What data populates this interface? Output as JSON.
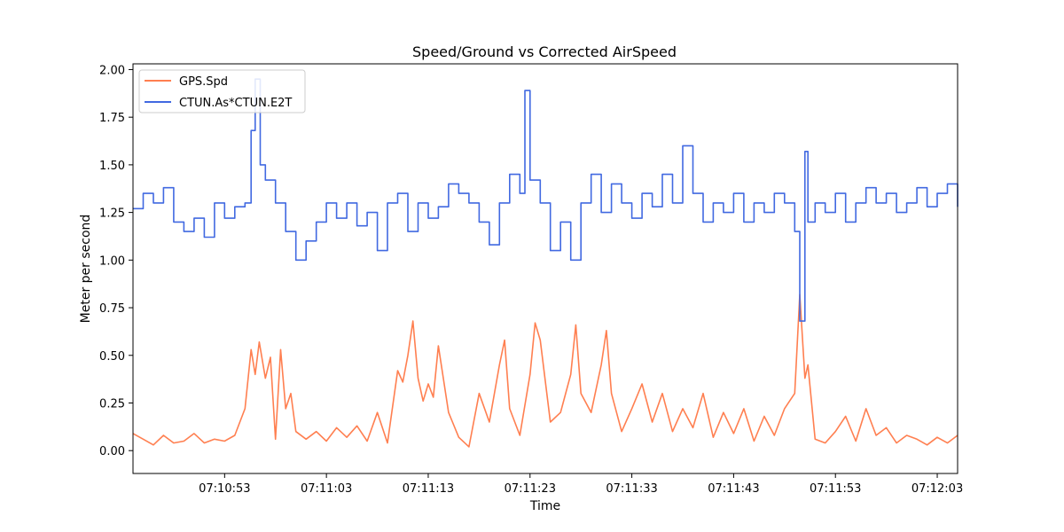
{
  "chart_data": {
    "type": "line",
    "title": "Speed/Ground vs Corrected AirSpeed",
    "xlabel": "Time",
    "ylabel": "Meter per second",
    "x_unit": "time of day (HH:MM:SS)",
    "xlim": [
      "07:10:44",
      "07:12:05"
    ],
    "ylim": [
      -0.12,
      2.03
    ],
    "x_ticks": [
      "07:10:53",
      "07:11:03",
      "07:11:13",
      "07:11:23",
      "07:11:33",
      "07:11:43",
      "07:11:53",
      "07:12:03"
    ],
    "y_ticks": [
      "0.00",
      "0.25",
      "0.50",
      "0.75",
      "1.00",
      "1.25",
      "1.50",
      "1.75",
      "2.00"
    ],
    "grid": false,
    "legend_position": "top-left",
    "series": [
      {
        "name": "GPS.Spd",
        "color": "#FF7F50",
        "step": false,
        "points": [
          [
            "07:10:44",
            0.09
          ],
          [
            "07:10:45",
            0.06
          ],
          [
            "07:10:46",
            0.03
          ],
          [
            "07:10:47",
            0.08
          ],
          [
            "07:10:48",
            0.04
          ],
          [
            "07:10:49",
            0.05
          ],
          [
            "07:10:50",
            0.09
          ],
          [
            "07:10:51",
            0.04
          ],
          [
            "07:10:52",
            0.06
          ],
          [
            "07:10:53",
            0.05
          ],
          [
            "07:10:54",
            0.08
          ],
          [
            "07:10:55",
            0.22
          ],
          [
            "07:10:55.6",
            0.53
          ],
          [
            "07:10:56",
            0.4
          ],
          [
            "07:10:56.4",
            0.57
          ],
          [
            "07:10:57",
            0.38
          ],
          [
            "07:10:57.5",
            0.49
          ],
          [
            "07:10:58",
            0.06
          ],
          [
            "07:10:58.5",
            0.53
          ],
          [
            "07:10:59",
            0.22
          ],
          [
            "07:10:59.5",
            0.3
          ],
          [
            "07:11:00",
            0.1
          ],
          [
            "07:11:01",
            0.06
          ],
          [
            "07:11:02",
            0.1
          ],
          [
            "07:11:03",
            0.05
          ],
          [
            "07:11:04",
            0.12
          ],
          [
            "07:11:05",
            0.07
          ],
          [
            "07:11:06",
            0.13
          ],
          [
            "07:11:07",
            0.05
          ],
          [
            "07:11:08",
            0.2
          ],
          [
            "07:11:09",
            0.04
          ],
          [
            "07:11:10",
            0.42
          ],
          [
            "07:11:10.5",
            0.36
          ],
          [
            "07:11:11",
            0.5
          ],
          [
            "07:11:11.5",
            0.68
          ],
          [
            "07:11:12",
            0.38
          ],
          [
            "07:11:12.5",
            0.26
          ],
          [
            "07:11:13",
            0.35
          ],
          [
            "07:11:13.5",
            0.28
          ],
          [
            "07:11:14",
            0.55
          ],
          [
            "07:11:15",
            0.2
          ],
          [
            "07:11:16",
            0.07
          ],
          [
            "07:11:17",
            0.02
          ],
          [
            "07:11:18",
            0.3
          ],
          [
            "07:11:19",
            0.15
          ],
          [
            "07:11:20",
            0.45
          ],
          [
            "07:11:20.5",
            0.58
          ],
          [
            "07:11:21",
            0.22
          ],
          [
            "07:11:22",
            0.08
          ],
          [
            "07:11:23",
            0.4
          ],
          [
            "07:11:23.5",
            0.67
          ],
          [
            "07:11:24",
            0.58
          ],
          [
            "07:11:25",
            0.15
          ],
          [
            "07:11:26",
            0.2
          ],
          [
            "07:11:27",
            0.4
          ],
          [
            "07:11:27.5",
            0.66
          ],
          [
            "07:11:28",
            0.3
          ],
          [
            "07:11:29",
            0.2
          ],
          [
            "07:11:30",
            0.45
          ],
          [
            "07:11:30.5",
            0.63
          ],
          [
            "07:11:31",
            0.3
          ],
          [
            "07:11:32",
            0.1
          ],
          [
            "07:11:33",
            0.22
          ],
          [
            "07:11:34",
            0.35
          ],
          [
            "07:11:35",
            0.15
          ],
          [
            "07:11:36",
            0.3
          ],
          [
            "07:11:37",
            0.1
          ],
          [
            "07:11:38",
            0.22
          ],
          [
            "07:11:39",
            0.12
          ],
          [
            "07:11:40",
            0.3
          ],
          [
            "07:11:41",
            0.07
          ],
          [
            "07:11:42",
            0.2
          ],
          [
            "07:11:43",
            0.09
          ],
          [
            "07:11:44",
            0.22
          ],
          [
            "07:11:45",
            0.05
          ],
          [
            "07:11:46",
            0.18
          ],
          [
            "07:11:47",
            0.08
          ],
          [
            "07:11:48",
            0.22
          ],
          [
            "07:11:49",
            0.3
          ],
          [
            "07:11:49.5",
            0.82
          ],
          [
            "07:11:50",
            0.38
          ],
          [
            "07:11:50.3",
            0.45
          ],
          [
            "07:11:51",
            0.06
          ],
          [
            "07:11:52",
            0.04
          ],
          [
            "07:11:53",
            0.1
          ],
          [
            "07:11:54",
            0.18
          ],
          [
            "07:11:55",
            0.05
          ],
          [
            "07:11:56",
            0.22
          ],
          [
            "07:11:57",
            0.08
          ],
          [
            "07:11:58",
            0.12
          ],
          [
            "07:11:59",
            0.04
          ],
          [
            "07:12:00",
            0.08
          ],
          [
            "07:12:01",
            0.06
          ],
          [
            "07:12:02",
            0.03
          ],
          [
            "07:12:03",
            0.07
          ],
          [
            "07:12:04",
            0.04
          ],
          [
            "07:12:05",
            0.08
          ]
        ]
      },
      {
        "name": "CTUN.As*CTUN.E2T",
        "color": "#4169E1",
        "step": true,
        "points": [
          [
            "07:10:44",
            1.27
          ],
          [
            "07:10:45",
            1.35
          ],
          [
            "07:10:46",
            1.3
          ],
          [
            "07:10:47",
            1.38
          ],
          [
            "07:10:48",
            1.2
          ],
          [
            "07:10:49",
            1.15
          ],
          [
            "07:10:50",
            1.22
          ],
          [
            "07:10:51",
            1.12
          ],
          [
            "07:10:52",
            1.3
          ],
          [
            "07:10:53",
            1.22
          ],
          [
            "07:10:54",
            1.28
          ],
          [
            "07:10:55",
            1.3
          ],
          [
            "07:10:55.6",
            1.68
          ],
          [
            "07:10:56",
            1.95
          ],
          [
            "07:10:56.5",
            1.5
          ],
          [
            "07:10:57",
            1.42
          ],
          [
            "07:10:58",
            1.3
          ],
          [
            "07:10:59",
            1.15
          ],
          [
            "07:11:00",
            1.0
          ],
          [
            "07:11:01",
            1.1
          ],
          [
            "07:11:02",
            1.2
          ],
          [
            "07:11:03",
            1.3
          ],
          [
            "07:11:04",
            1.22
          ],
          [
            "07:11:05",
            1.3
          ],
          [
            "07:11:06",
            1.18
          ],
          [
            "07:11:07",
            1.25
          ],
          [
            "07:11:08",
            1.05
          ],
          [
            "07:11:09",
            1.3
          ],
          [
            "07:11:10",
            1.35
          ],
          [
            "07:11:11",
            1.15
          ],
          [
            "07:11:12",
            1.3
          ],
          [
            "07:11:13",
            1.22
          ],
          [
            "07:11:14",
            1.28
          ],
          [
            "07:11:15",
            1.4
          ],
          [
            "07:11:16",
            1.35
          ],
          [
            "07:11:17",
            1.3
          ],
          [
            "07:11:18",
            1.2
          ],
          [
            "07:11:19",
            1.08
          ],
          [
            "07:11:20",
            1.3
          ],
          [
            "07:11:21",
            1.45
          ],
          [
            "07:11:22",
            1.35
          ],
          [
            "07:11:22.5",
            1.89
          ],
          [
            "07:11:23",
            1.42
          ],
          [
            "07:11:24",
            1.3
          ],
          [
            "07:11:25",
            1.05
          ],
          [
            "07:11:26",
            1.2
          ],
          [
            "07:11:27",
            1.0
          ],
          [
            "07:11:28",
            1.3
          ],
          [
            "07:11:29",
            1.45
          ],
          [
            "07:11:30",
            1.25
          ],
          [
            "07:11:31",
            1.4
          ],
          [
            "07:11:32",
            1.3
          ],
          [
            "07:11:33",
            1.22
          ],
          [
            "07:11:34",
            1.35
          ],
          [
            "07:11:35",
            1.28
          ],
          [
            "07:11:36",
            1.45
          ],
          [
            "07:11:37",
            1.3
          ],
          [
            "07:11:38",
            1.6
          ],
          [
            "07:11:39",
            1.35
          ],
          [
            "07:11:40",
            1.2
          ],
          [
            "07:11:41",
            1.3
          ],
          [
            "07:11:42",
            1.25
          ],
          [
            "07:11:43",
            1.35
          ],
          [
            "07:11:44",
            1.2
          ],
          [
            "07:11:45",
            1.3
          ],
          [
            "07:11:46",
            1.25
          ],
          [
            "07:11:47",
            1.35
          ],
          [
            "07:11:48",
            1.3
          ],
          [
            "07:11:49",
            1.15
          ],
          [
            "07:11:49.5",
            0.68
          ],
          [
            "07:11:50",
            1.57
          ],
          [
            "07:11:50.3",
            1.2
          ],
          [
            "07:11:51",
            1.3
          ],
          [
            "07:11:52",
            1.25
          ],
          [
            "07:11:53",
            1.35
          ],
          [
            "07:11:54",
            1.2
          ],
          [
            "07:11:55",
            1.3
          ],
          [
            "07:11:56",
            1.38
          ],
          [
            "07:11:57",
            1.3
          ],
          [
            "07:11:58",
            1.35
          ],
          [
            "07:11:59",
            1.25
          ],
          [
            "07:12:00",
            1.3
          ],
          [
            "07:12:01",
            1.38
          ],
          [
            "07:12:02",
            1.28
          ],
          [
            "07:12:03",
            1.35
          ],
          [
            "07:12:04",
            1.4
          ],
          [
            "07:12:05",
            1.28
          ]
        ]
      }
    ]
  }
}
